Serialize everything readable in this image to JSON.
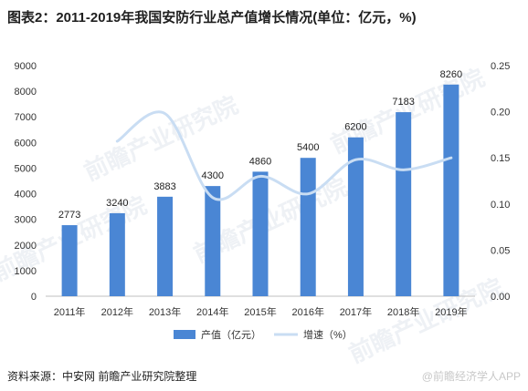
{
  "chart_data": {
    "type": "bar",
    "title": "图表2：2011-2019年我国安防行业总产值增长情况(单位：亿元，%)",
    "categories": [
      "2011年",
      "2012年",
      "2013年",
      "2014年",
      "2015年",
      "2016年",
      "2017年",
      "2018年",
      "2019年"
    ],
    "series": [
      {
        "name": "产值（亿元）",
        "type": "bar",
        "axis": "left",
        "color": "#4a86d4",
        "values": [
          2773,
          3240,
          3883,
          4300,
          4860,
          5400,
          6200,
          7183,
          8260
        ],
        "value_labels": [
          "2773",
          "3240",
          "3883",
          "4300",
          "4860",
          "5400",
          "6200",
          "7183",
          "8260"
        ]
      },
      {
        "name": "增速（%）",
        "type": "line",
        "smooth": true,
        "axis": "right",
        "color": "#c9ddf3",
        "values": [
          null,
          0.168,
          0.198,
          0.107,
          0.13,
          0.111,
          0.148,
          0.137,
          0.15
        ]
      }
    ],
    "y_left": {
      "min": 0,
      "max": 9000,
      "ticks": [
        "0",
        "1000",
        "2000",
        "3000",
        "4000",
        "5000",
        "6000",
        "7000",
        "8000",
        "9000"
      ]
    },
    "y_right": {
      "min": 0,
      "max": 0.25,
      "ticks": [
        "0.00",
        "0.05",
        "0.10",
        "0.15",
        "0.20",
        "0.25"
      ]
    },
    "grid": false,
    "legend": "bottom-center"
  },
  "source": "资料来源：中安网 前瞻产业研究院整理",
  "watermark_text": "前瞻产业研究院",
  "footer_brand": "@前瞻经济学人APP"
}
